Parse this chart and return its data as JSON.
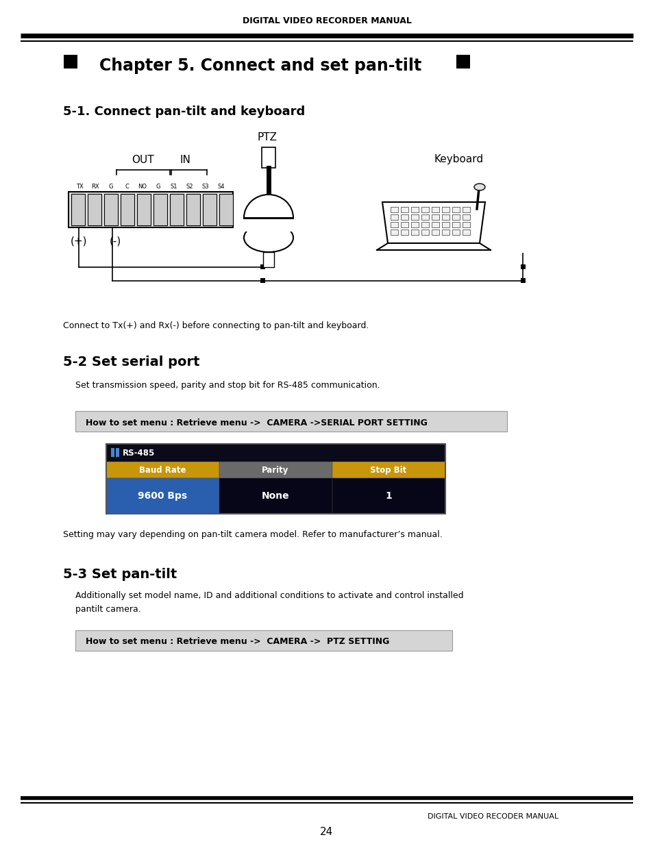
{
  "page_title": "DIGITAL VIDEO RECORDER MANUAL",
  "chapter_title": "Chapter 5. Connect and set pan-tilt",
  "section1_title": "5-1. Connect pan-tilt and keyboard",
  "section1_note": "Connect to Tx(+) and Rx(-) before connecting to pan-tilt and keyboard.",
  "section2_title": "5-2 Set serial port",
  "section2_desc": "Set transmission speed, parity and stop bit for RS-485 communication.",
  "section2_menu": "How to set menu : Retrieve menu ->  CAMERA ->SERIAL PORT SETTING",
  "rs485_title": "RS-485",
  "table_headers": [
    "Baud Rate",
    "Parity",
    "Stop Bit"
  ],
  "table_values": [
    "9600 Bps",
    "None",
    "1"
  ],
  "section2_note": "Setting may vary depending on pan-tilt camera model. Refer to manufacturer’s manual.",
  "section3_title": "5-3 Set pan-tilt",
  "section3_desc1": "Additionally set model name, ID and additional conditions to activate and control installed",
  "section3_desc2": "pantilt camera.",
  "section3_menu": "How to set menu : Retrieve menu ->  CAMERA ->  PTZ SETTING",
  "footer_left": "DIGITAL VIDEO RECODER MANUAL",
  "footer_page": "24",
  "bg_color": "#ffffff",
  "text_color": "#000000",
  "header_thick_lw": 5,
  "header_thin_lw": 1.5
}
